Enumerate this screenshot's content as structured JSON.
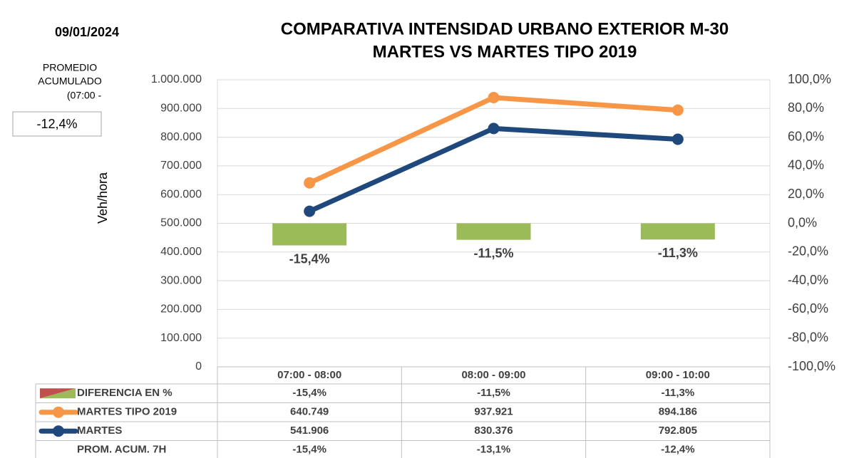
{
  "chart_data": {
    "type": "combo",
    "title_lines": [
      "COMPARATIVA INTENSIDAD URBANO EXTERIOR M-30",
      "MARTES VS MARTES TIPO 2019"
    ],
    "date": "09/01/2024",
    "summary_label_lines": [
      "PROMEDIO",
      "ACUMULADO",
      "(07:00 -"
    ],
    "summary_value": {
      "value": -12.4,
      "label": "-12,4%"
    },
    "y_label": "Veh/hora",
    "categories": [
      "07:00 - 08:00",
      "08:00 - 09:00",
      "09:00 - 10:00"
    ],
    "ylim": [
      0,
      1000000
    ],
    "yticks": [
      0,
      {
        "value": 100000,
        "label": "100.000"
      },
      {
        "value": 200000,
        "label": "200.000"
      },
      {
        "value": 300000,
        "label": "300.000"
      },
      {
        "value": 400000,
        "label": "400.000"
      },
      {
        "value": 500000,
        "label": "500.000"
      },
      {
        "value": 600000,
        "label": "600.000"
      },
      {
        "value": 700000,
        "label": "700.000"
      },
      {
        "value": 800000,
        "label": "800.000"
      },
      {
        "value": 900000,
        "label": "900.000"
      },
      {
        "value": 1000000,
        "label": "1.000.000"
      }
    ],
    "y2lim": [
      -100,
      100
    ],
    "y2ticks": [
      {
        "value": -100,
        "label": "-100,0%"
      },
      {
        "value": -80,
        "label": "-80,0%"
      },
      {
        "value": -60,
        "label": "-60,0%"
      },
      {
        "value": -40,
        "label": "-40,0%"
      },
      {
        "value": -20,
        "label": "-20,0%"
      },
      {
        "value": 0,
        "label": "0,0%"
      },
      {
        "value": 20,
        "label": "20,0%"
      },
      {
        "value": 40,
        "label": "40,0%"
      },
      {
        "value": 60,
        "label": "60,0%"
      },
      {
        "value": 80,
        "label": "80,0%"
      },
      {
        "value": 100,
        "label": "100,0%"
      }
    ],
    "grid": true,
    "series": [
      {
        "name": "DIFERENCIA EN %",
        "type": "bar",
        "axis": "y2",
        "color": "#9bbb59",
        "values": [
          -15.4,
          -11.5,
          -11.3
        ],
        "value_labels": [
          "-15,4%",
          "-11,5%",
          "-11,3%"
        ]
      },
      {
        "name": "MARTES TIPO 2019",
        "type": "line",
        "color": "#f79646",
        "values": [
          640749,
          937921,
          894186
        ],
        "value_labels": [
          "640.749",
          "937.921",
          "894.186"
        ]
      },
      {
        "name": "MARTES",
        "type": "line",
        "color": "#1f497d",
        "values": [
          541906,
          830376,
          792805
        ],
        "value_labels": [
          "541.906",
          "830.376",
          "792.805"
        ]
      }
    ],
    "table_rows": [
      {
        "name": "PROM. ACUM. 7H",
        "values": [
          -15.4,
          -13.1,
          -12.4
        ],
        "value_labels": [
          "-15,4%",
          "-13,1%",
          "-12,4%"
        ]
      }
    ]
  }
}
